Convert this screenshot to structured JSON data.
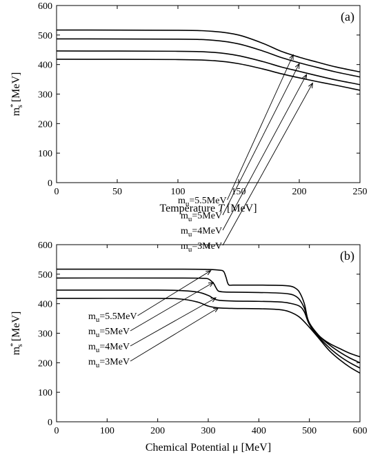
{
  "chart_data": [
    {
      "type": "line",
      "panel_label": "(a)",
      "xlabel": "Temperature T [MeV]",
      "ylabel": "m*s [MeV]",
      "xlim": [
        0,
        250
      ],
      "ylim": [
        0,
        600
      ],
      "x_ticks": [
        0,
        50,
        100,
        150,
        200,
        250
      ],
      "y_ticks": [
        0,
        100,
        200,
        300,
        400,
        500,
        600
      ],
      "series": [
        {
          "name": "mu=5.5MeV",
          "x": [
            0,
            100,
            130,
            150,
            170,
            185,
            200,
            215,
            230,
            250
          ],
          "y": [
            517,
            516,
            512,
            500,
            472,
            445,
            425,
            408,
            392,
            375
          ]
        },
        {
          "name": "mu=5MeV",
          "x": [
            0,
            100,
            130,
            150,
            170,
            185,
            200,
            215,
            230,
            250
          ],
          "y": [
            487,
            486,
            482,
            470,
            446,
            424,
            406,
            390,
            375,
            358
          ]
        },
        {
          "name": "mu=4MeV",
          "x": [
            0,
            100,
            130,
            150,
            170,
            185,
            200,
            215,
            230,
            250
          ],
          "y": [
            446,
            445,
            441,
            430,
            410,
            392,
            377,
            362,
            348,
            332
          ]
        },
        {
          "name": "mu=3MeV",
          "x": [
            0,
            100,
            130,
            150,
            170,
            185,
            200,
            215,
            230,
            250
          ],
          "y": [
            418,
            417,
            413,
            403,
            385,
            369,
            355,
            342,
            330,
            313
          ]
        }
      ],
      "annotations": [
        {
          "text": "mu=5.5MeV",
          "sub_label": "u",
          "base_label": "m",
          "eq_label": "=5.5MeV",
          "points_to": [
            195,
            433
          ]
        },
        {
          "text": "mu=5MeV",
          "sub_label": "u",
          "base_label": "m",
          "eq_label": "=5MeV",
          "points_to": [
            200,
            403
          ]
        },
        {
          "text": "mu=4MeV",
          "sub_label": "u",
          "base_label": "m",
          "eq_label": "=4MeV",
          "points_to": [
            206,
            366
          ]
        },
        {
          "text": "mu=3MeV",
          "sub_label": "u",
          "base_label": "m",
          "eq_label": "=3MeV",
          "points_to": [
            211,
            337
          ]
        }
      ]
    },
    {
      "type": "line",
      "panel_label": "(b)",
      "xlabel": "Chemical Potential μ [MeV]",
      "ylabel": "m*s [MeV]",
      "xlim": [
        0,
        600
      ],
      "ylim": [
        0,
        600
      ],
      "x_ticks": [
        0,
        100,
        200,
        300,
        400,
        500,
        600
      ],
      "y_ticks": [
        0,
        100,
        200,
        300,
        400,
        500,
        600
      ],
      "series": [
        {
          "name": "mu=5.5MeV",
          "x": [
            0,
            250,
            300,
            320,
            330,
            335,
            340,
            350,
            400,
            440,
            460,
            470,
            480,
            490,
            500,
            520,
            540,
            560,
            580,
            600
          ],
          "y": [
            517,
            517,
            516,
            514,
            510,
            490,
            465,
            463,
            463,
            462,
            460,
            455,
            440,
            400,
            330,
            290,
            265,
            248,
            232,
            220
          ]
        },
        {
          "name": "mu=5MeV",
          "x": [
            0,
            250,
            290,
            300,
            310,
            315,
            320,
            330,
            350,
            400,
            440,
            460,
            470,
            480,
            490,
            500,
            520,
            540,
            560,
            580,
            600
          ],
          "y": [
            487,
            487,
            486,
            484,
            470,
            455,
            443,
            440,
            439,
            438,
            436,
            433,
            428,
            415,
            385,
            335,
            290,
            260,
            236,
            216,
            200
          ]
        },
        {
          "name": "mu=4MeV",
          "x": [
            0,
            200,
            250,
            280,
            300,
            310,
            320,
            350,
            400,
            440,
            460,
            480,
            490,
            500,
            520,
            540,
            560,
            580,
            600
          ],
          "y": [
            446,
            446,
            444,
            439,
            428,
            418,
            412,
            409,
            408,
            406,
            402,
            392,
            372,
            330,
            285,
            250,
            222,
            200,
            182
          ]
        },
        {
          "name": "mu=3MeV",
          "x": [
            0,
            200,
            250,
            280,
            300,
            320,
            350,
            400,
            440,
            460,
            480,
            500,
            520,
            540,
            560,
            580,
            600
          ],
          "y": [
            418,
            418,
            415,
            405,
            392,
            386,
            384,
            383,
            380,
            373,
            355,
            320,
            280,
            240,
            210,
            185,
            165
          ]
        }
      ],
      "annotations": [
        {
          "text": "mu=5.5MeV",
          "sub_label": "u",
          "base_label": "m",
          "eq_label": "=5.5MeV",
          "points_to": [
            305,
            512
          ]
        },
        {
          "text": "mu=5MeV",
          "sub_label": "u",
          "base_label": "m",
          "eq_label": "=5MeV",
          "points_to": [
            310,
            472
          ]
        },
        {
          "text": "mu=4MeV",
          "sub_label": "u",
          "base_label": "m",
          "eq_label": "=4MeV",
          "points_to": [
            315,
            420
          ]
        },
        {
          "text": "mu=3MeV",
          "sub_label": "u",
          "base_label": "m",
          "eq_label": "=3MeV",
          "points_to": [
            320,
            386
          ]
        }
      ]
    }
  ],
  "axis_text": {
    "y_title_base": "m",
    "y_title_sup": "*",
    "y_title_sub": "s",
    "y_title_unit": " [MeV]",
    "a_x_title_main": "Temperature ",
    "a_x_title_var": "T",
    "a_x_title_unit": " [MeV]",
    "b_x_title": "Chemical Potential μ [MeV]"
  },
  "colors": {
    "line": "#000000",
    "axes": "#000000",
    "background": "#ffffff"
  }
}
